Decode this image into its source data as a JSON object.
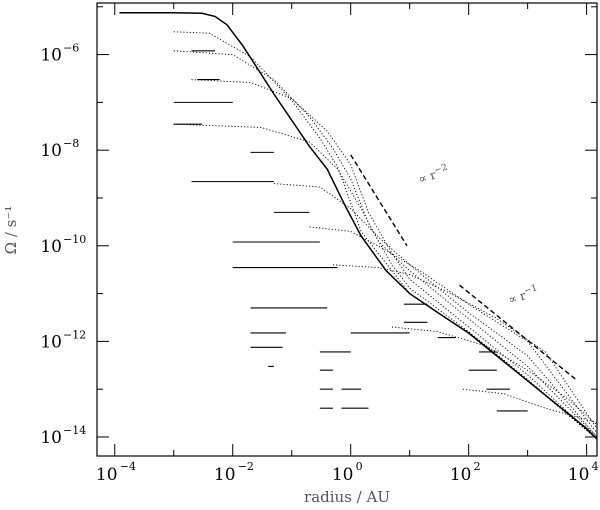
{
  "chart_data": {
    "type": "line",
    "title": "",
    "xlabel": "radius / AU",
    "ylabel": "Ω / s⁻¹",
    "x_scale": "log",
    "y_scale": "log",
    "xlim": [
      5e-05,
      15000
    ],
    "ylim": [
      4e-15,
      1.2e-05
    ],
    "x_ticks": [
      {
        "base": "10",
        "exp": "−4",
        "value": 0.0001
      },
      {
        "base": "10",
        "exp": "−2",
        "value": 0.01
      },
      {
        "base": "10",
        "exp": "0",
        "value": 1
      },
      {
        "base": "10",
        "exp": "2",
        "value": 100
      },
      {
        "base": "10",
        "exp": "4",
        "value": 10000
      }
    ],
    "y_ticks": [
      {
        "base": "10",
        "exp": "−6",
        "value": 1e-06
      },
      {
        "base": "10",
        "exp": "−8",
        "value": 1e-08
      },
      {
        "base": "10",
        "exp": "−10",
        "value": 1e-10
      },
      {
        "base": "10",
        "exp": "−12",
        "value": 1e-12
      },
      {
        "base": "10",
        "exp": "−14",
        "value": 1e-14
      }
    ],
    "grid": false,
    "legend": "none",
    "series": [
      {
        "style": "solid",
        "x": [
          0.00012,
          0.001,
          0.003,
          0.005,
          0.008,
          0.015,
          0.05,
          0.2,
          0.4,
          0.8,
          1.5,
          4,
          10,
          30,
          100,
          1000,
          10000,
          15000
        ],
        "y": [
          7.5e-06,
          7.5e-06,
          7.3e-06,
          6.3e-06,
          4.2e-06,
          1.5e-06,
          1.5e-07,
          1.2e-08,
          4e-09,
          7e-10,
          1.6e-10,
          3e-11,
          1e-11,
          4e-12,
          1.5e-12,
          1.5e-13,
          1.5e-14,
          9e-15
        ]
      },
      {
        "style": "dotted",
        "x": [
          0.001,
          0.004,
          0.02,
          0.1,
          0.3,
          0.6,
          1.5,
          5,
          10,
          100,
          1000,
          15000
        ],
        "y": [
          3e-06,
          2.8e-06,
          9e-07,
          1.1e-07,
          1.8e-08,
          4.5e-09,
          2e-10,
          3e-11,
          1e-11,
          1.5e-12,
          1.5e-13,
          9e-15
        ]
      },
      {
        "style": "dotted",
        "x": [
          0.001,
          0.01,
          0.05,
          0.2,
          0.5,
          1,
          2,
          5,
          10,
          100,
          1000,
          15000
        ],
        "y": [
          1.2e-06,
          1e-06,
          3e-07,
          5e-08,
          1.1e-08,
          2.5e-09,
          3e-10,
          4e-11,
          1.3e-11,
          1.6e-12,
          1.6e-13,
          9e-15
        ]
      },
      {
        "style": "dotted",
        "x": [
          0.002,
          0.02,
          0.1,
          0.4,
          1,
          2,
          5,
          10,
          100,
          1000,
          15000
        ],
        "y": [
          3e-07,
          2.6e-07,
          1.2e-07,
          2.5e-08,
          5e-09,
          5e-10,
          7e-11,
          2e-11,
          2e-12,
          2e-13,
          9e-15
        ]
      },
      {
        "style": "dotted",
        "x": [
          0.001,
          0.03,
          0.2,
          0.6,
          1.5,
          3,
          10,
          100,
          1000,
          15000
        ],
        "y": [
          3.5e-08,
          3e-08,
          1.5e-08,
          4e-09,
          6e-10,
          1.2e-10,
          3e-11,
          3e-12,
          3e-13,
          1e-14
        ]
      },
      {
        "style": "dotted",
        "x": [
          0.05,
          0.3,
          1,
          3,
          10,
          100,
          1000,
          15000
        ],
        "y": [
          2e-09,
          1.7e-09,
          6e-10,
          1.5e-10,
          4e-11,
          4e-12,
          5e-13,
          1e-14
        ]
      },
      {
        "style": "dotted",
        "x": [
          0.2,
          1,
          4,
          15,
          100,
          1000,
          15000
        ],
        "y": [
          2.5e-10,
          2e-10,
          8e-11,
          3e-11,
          6e-12,
          1e-12,
          1.2e-14
        ]
      },
      {
        "style": "dotted",
        "x": [
          0.5,
          3,
          10,
          50,
          300,
          2000,
          15000
        ],
        "y": [
          4e-11,
          3.5e-11,
          2.5e-11,
          1e-11,
          3e-12,
          6e-13,
          1.5e-14
        ]
      },
      {
        "style": "dotted",
        "x": [
          5,
          30,
          200,
          1000,
          5000,
          15000
        ],
        "y": [
          2e-12,
          1.6e-12,
          8e-13,
          2.5e-13,
          6e-14,
          1.8e-14
        ]
      },
      {
        "style": "dotted",
        "x": [
          80,
          400,
          2000,
          8000,
          15000
        ],
        "y": [
          1e-13,
          8e-14,
          4e-14,
          2.5e-14,
          2e-14
        ]
      }
    ],
    "dashes": [
      {
        "x1": 0.001,
        "x2": 0.01,
        "y": 1e-07
      },
      {
        "x1": 0.001,
        "x2": 0.003,
        "y": 3.5e-08
      },
      {
        "x1": 0.002,
        "x2": 0.005,
        "y": 1.2e-06
      },
      {
        "x1": 0.0025,
        "x2": 0.006,
        "y": 3e-07
      },
      {
        "x1": 0.002,
        "x2": 0.05,
        "y": 2.2e-09
      },
      {
        "x1": 0.02,
        "x2": 0.05,
        "y": 9e-09
      },
      {
        "x1": 0.05,
        "x2": 0.2,
        "y": 5e-10
      },
      {
        "x1": 0.01,
        "x2": 0.3,
        "y": 1.2e-10
      },
      {
        "x1": 0.01,
        "x2": 0.6,
        "y": 3.5e-11
      },
      {
        "x1": 0.02,
        "x2": 0.4,
        "y": 5e-12
      },
      {
        "x1": 0.02,
        "x2": 0.08,
        "y": 1.5e-12
      },
      {
        "x1": 0.02,
        "x2": 0.07,
        "y": 7.5e-13
      },
      {
        "x1": 1,
        "x2": 10,
        "y": 1.5e-12
      },
      {
        "x1": 0.3,
        "x2": 1,
        "y": 6e-13
      },
      {
        "x1": 0.3,
        "x2": 0.5,
        "y": 2.5e-13
      },
      {
        "x1": 0.04,
        "x2": 0.05,
        "y": 3e-13
      },
      {
        "x1": 0.7,
        "x2": 1.5,
        "y": 1e-13
      },
      {
        "x1": 0.3,
        "x2": 0.5,
        "y": 1e-13
      },
      {
        "x1": 0.3,
        "x2": 0.5,
        "y": 4e-14
      },
      {
        "x1": 0.7,
        "x2": 2,
        "y": 4e-14
      },
      {
        "x1": 8,
        "x2": 20,
        "y": 2.5e-12
      },
      {
        "x1": 8,
        "x2": 20,
        "y": 6e-12
      },
      {
        "x1": 30,
        "x2": 60,
        "y": 1.2e-12
      },
      {
        "x1": 100,
        "x2": 300,
        "y": 2.5e-13
      },
      {
        "x1": 200,
        "x2": 500,
        "y": 1e-13
      },
      {
        "x1": 150,
        "x2": 300,
        "y": 6e-13
      },
      {
        "x1": 300,
        "x2": 1000,
        "y": 3.5e-14
      }
    ],
    "reference_lines": [
      {
        "label_prefix": "∝ r",
        "label_exp": "−2",
        "x1": 1,
        "y1": 8e-09,
        "x2": 9,
        "y2": 1e-10,
        "label_x": 15,
        "label_y": 2e-09
      },
      {
        "label_prefix": "∝ r",
        "label_exp": "−1",
        "x1": 70,
        "y1": 1.5e-11,
        "x2": 7000,
        "y2": 1.5e-13,
        "label_x": 500,
        "label_y": 6e-12
      }
    ]
  }
}
